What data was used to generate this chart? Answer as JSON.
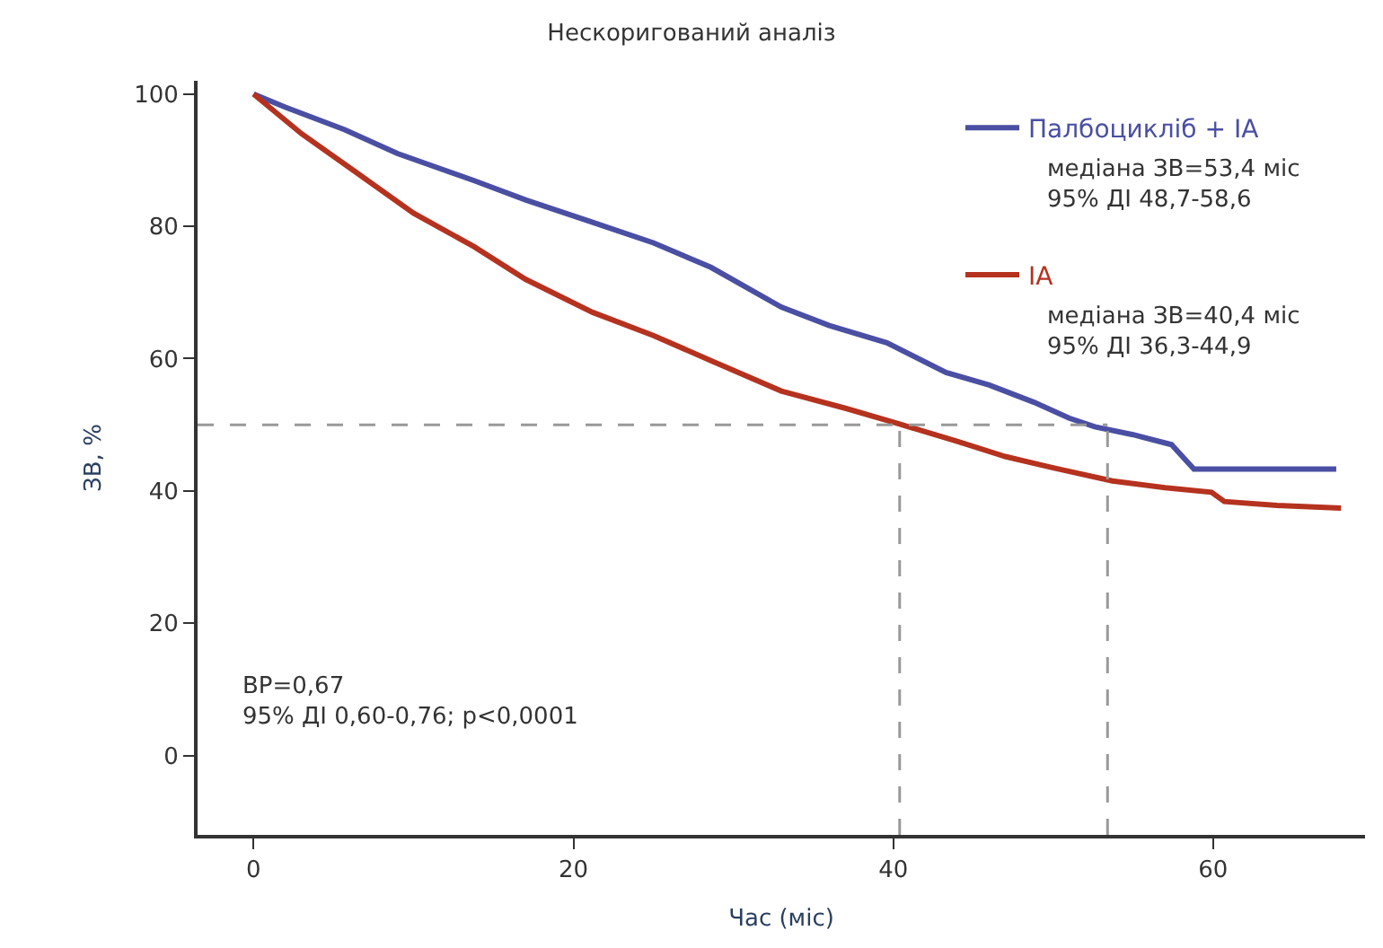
{
  "chart_data": {
    "type": "line",
    "title": "Нескоригований аналіз",
    "xlabel": "Час (міс)",
    "ylabel": "ЗВ, %",
    "xlim": [
      -3.5,
      69.5
    ],
    "xticks": [
      0,
      20,
      40,
      60
    ],
    "ylim": [
      -12,
      102
    ],
    "yticks": [
      0,
      20,
      40,
      60,
      80,
      100
    ],
    "legend": "top right",
    "marker": "none",
    "line_style": "solid",
    "series": [
      {
        "name": "Палбоцикліб + IA",
        "color": "#4a4fa3",
        "x": [
          0,
          2,
          5.7,
          9,
          13.8,
          17,
          21.2,
          25,
          28.6,
          33,
          36,
          39.6,
          43.3,
          46,
          48.8,
          51,
          52.6,
          55,
          57.4,
          58.8,
          62,
          65,
          67.7
        ],
        "values": [
          100,
          98,
          94.6,
          91,
          86.9,
          84,
          80.6,
          77.5,
          73.8,
          67.8,
          65,
          62.4,
          57.9,
          56,
          53.4,
          51,
          49.7,
          48.5,
          47,
          43.3,
          43.3,
          43.3,
          43.3
        ]
      },
      {
        "name": "IA",
        "color": "#b5321f",
        "x": [
          0,
          3,
          6.1,
          10,
          13.8,
          17,
          21.2,
          25,
          28.6,
          33,
          37,
          40.4,
          44,
          47,
          50,
          53.7,
          57,
          59.9,
          60.7,
          64,
          68
        ],
        "values": [
          100,
          94,
          88.7,
          82,
          76.9,
          72,
          67,
          63.5,
          59.7,
          55.1,
          52.5,
          50.1,
          47.5,
          45.2,
          43.5,
          41.5,
          40.5,
          39.8,
          38.4,
          37.8,
          37.4
        ]
      }
    ],
    "ref_lines": [
      {
        "axis": "y",
        "value": 50,
        "color": "#999999",
        "line_style": "dashed"
      },
      {
        "axis": "x",
        "value": 40.4,
        "color": "#999999",
        "line_style": "dashed"
      },
      {
        "axis": "x",
        "value": 53.4,
        "color": "#999999",
        "line_style": "dashed"
      }
    ],
    "annotations": [
      "медіана ЗВ=53,4 міс\n95% ДІ 48,7-58,6",
      "медіана ЗВ=40,4 міс\n95% ДІ 36,3-44,9",
      "ВР=0,67\n95% ДІ 0,60-0,76; p<0,0001"
    ]
  }
}
